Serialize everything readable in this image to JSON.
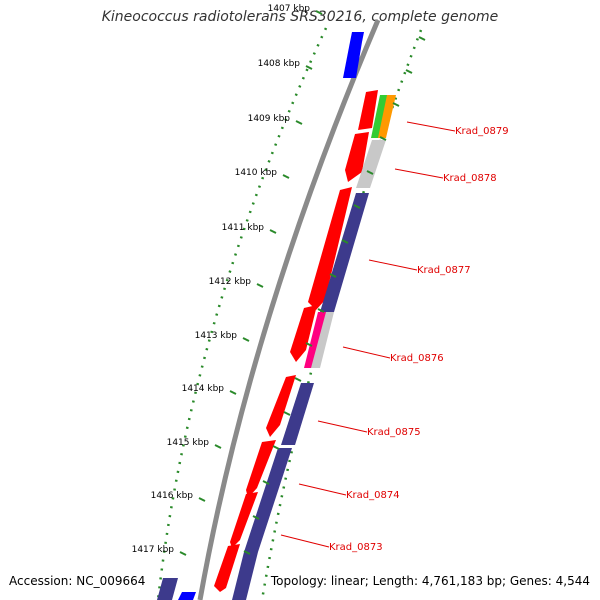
{
  "title": "Kineococcus radiotolerans SRS30216, complete genome",
  "footer": {
    "accession": "Accession: NC_009664",
    "stats": "Topology: linear; Length: 4,761,183 bp; Genes: 4,544"
  },
  "colors": {
    "background": "#ffffff",
    "backbone": "#888888",
    "tick": "#2a8a2a",
    "label": "#e00000",
    "cds_red": "#ff0000",
    "cds_navy": "#3d3a8c",
    "cds_blue": "#0000ff"
  },
  "kbp_ticks": [
    "1407 kbp",
    "1408 kbp",
    "1409 kbp",
    "1410 kbp",
    "1411 kbp",
    "1412 kbp",
    "1413 kbp",
    "1414 kbp",
    "1415 kbp",
    "1416 kbp",
    "1417 kbp"
  ],
  "gene_labels": [
    "Krad_0879",
    "Krad_0878",
    "Krad_0877",
    "Krad_0876",
    "Krad_0875",
    "Krad_0874",
    "Krad_0873"
  ]
}
